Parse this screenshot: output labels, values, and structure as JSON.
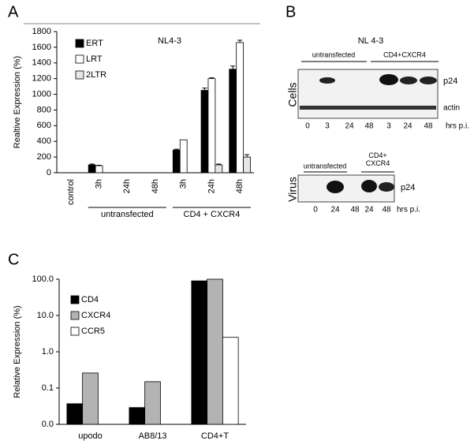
{
  "chart_data": [
    {
      "type": "bar",
      "panel_label": "A",
      "title": "NL4-3",
      "ylabel": "Realtive Expression (%)",
      "categories": [
        "control",
        "3h",
        "24h",
        "48h",
        "3h",
        "24h",
        "48h"
      ],
      "groups": [
        "untransfected",
        "CD4 + CXCR4"
      ],
      "series": [
        {
          "name": "ERT",
          "color": "#000000",
          "values": [
            0,
            100,
            0,
            0,
            290,
            1050,
            1320
          ],
          "errors": [
            0,
            10,
            0,
            0,
            10,
            30,
            40
          ]
        },
        {
          "name": "LRT",
          "color": "#ffffff",
          "values": [
            0,
            90,
            0,
            0,
            420,
            1200,
            1660
          ],
          "errors": [
            0,
            5,
            0,
            0,
            0,
            10,
            30
          ]
        },
        {
          "name": "2LTR",
          "color": "#e6e6e6",
          "values": [
            0,
            0,
            0,
            0,
            0,
            100,
            200
          ],
          "errors": [
            0,
            0,
            0,
            0,
            0,
            10,
            30
          ]
        }
      ],
      "ylim": [
        0,
        1800
      ],
      "yticks": [
        0,
        200,
        400,
        600,
        800,
        1000,
        1200,
        1400,
        1600,
        1800
      ],
      "legend": "upper left"
    },
    {
      "type": "bar",
      "panel_label": "C",
      "ylabel": "Relative Expression (%)",
      "log_scale": true,
      "categories": [
        "upodo",
        "AB8/13",
        "CD4+T"
      ],
      "series": [
        {
          "name": "CD4",
          "color": "#000000",
          "values": [
            0.037,
            0.029,
            90
          ]
        },
        {
          "name": "CXCR4",
          "color": "#b3b3b3",
          "values": [
            0.26,
            0.15,
            100
          ]
        },
        {
          "name": "CCR5",
          "color": "#ffffff",
          "values": [
            null,
            null,
            2.5
          ]
        }
      ],
      "ylim": [
        0.01,
        100
      ],
      "yticks": [
        {
          "value": 0.01,
          "label": "0.0"
        },
        0.1,
        {
          "value": 1,
          "label": "1.0"
        },
        {
          "value": 10,
          "label": "10.0"
        },
        {
          "value": 100,
          "label": "100.0"
        }
      ],
      "legend": "upper left"
    }
  ],
  "panel_B": {
    "label": "B",
    "title": "NL 4-3",
    "cells": {
      "side_label": "Cells",
      "groups": [
        "untransfected",
        "CD4+CXCR4"
      ],
      "bands": [
        "p24",
        "actin"
      ],
      "lanes": [
        0,
        3,
        24,
        48,
        3,
        24,
        48
      ],
      "unit": "hrs p.i."
    },
    "virus": {
      "side_label": "Virus",
      "groups": [
        "untransfected",
        "CD4+ CXCR4"
      ],
      "band": "p24",
      "lanes": [
        0,
        24,
        48,
        24,
        48
      ],
      "unit": "hrs p.i."
    }
  }
}
